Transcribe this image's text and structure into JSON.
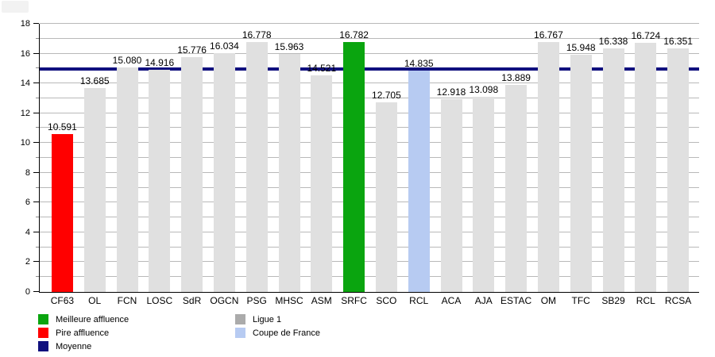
{
  "chart_data": {
    "type": "bar",
    "title": "",
    "categories": [
      "CF63",
      "OL",
      "FCN",
      "LOSC",
      "SdR",
      "OGCN",
      "PSG",
      "MHSC",
      "ASM",
      "SRFC",
      "SCO",
      "RCL",
      "ACA",
      "AJA",
      "ESTAC",
      "OM",
      "TFC",
      "SB29",
      "RCL",
      "RCSA"
    ],
    "values": [
      10.591,
      13.685,
      15.08,
      14.916,
      15.776,
      16.034,
      16.778,
      15.963,
      14.521,
      16.782,
      12.705,
      14.835,
      12.918,
      13.098,
      13.889,
      16.767,
      15.948,
      16.338,
      16.724,
      16.351
    ],
    "value_labels": [
      "10.591",
      "13.685",
      "15.080",
      "14.916",
      "15.776",
      "16.034",
      "16.778",
      "15.963",
      "14.521",
      "16.782",
      "12.705",
      "14.835",
      "12.918",
      "13.098",
      "13.889",
      "16.767",
      "15.948",
      "16.338",
      "16.724",
      "16.351"
    ],
    "bar_roles": [
      "worst",
      "ligue1",
      "ligue1",
      "ligue1",
      "ligue1",
      "ligue1",
      "ligue1",
      "ligue1",
      "ligue1",
      "best",
      "ligue1",
      "coupe",
      "ligue1",
      "ligue1",
      "ligue1",
      "ligue1",
      "ligue1",
      "ligue1",
      "ligue1",
      "ligue1"
    ],
    "average_line": 14.985,
    "ylim": [
      0,
      18
    ],
    "y_major_ticks": [
      0,
      2,
      4,
      6,
      8,
      10,
      12,
      14,
      16,
      18
    ],
    "y_minor_step": 1,
    "grid": "horizontal every 1, behind bars",
    "xlabel": "",
    "ylabel": "",
    "legend_position": "bottom",
    "colors": {
      "best": "#0aa50f",
      "worst": "#ff0000",
      "ligue1": "#e0e0e0",
      "coupe": "#b7cbf2",
      "average": "#10107e",
      "grid": "#b9b9b9",
      "axis": "#000000"
    },
    "legend": [
      {
        "label": "Meilleure affluence",
        "color": "#0aa50f",
        "column": 0
      },
      {
        "label": "Pire affluence",
        "color": "#ff0000",
        "column": 0
      },
      {
        "label": "Moyenne",
        "color": "#10107e",
        "column": 0
      },
      {
        "label": "Ligue 1",
        "color": "#ababab",
        "column": 1
      },
      {
        "label": "Coupe de France",
        "color": "#b7cbf2",
        "column": 1
      }
    ]
  }
}
